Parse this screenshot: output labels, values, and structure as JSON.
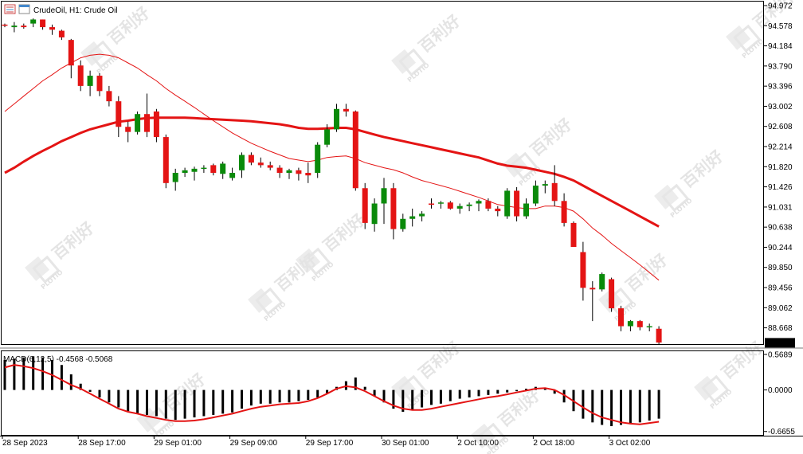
{
  "window": {
    "title": "CrudeOil, H1:  Crude Oil",
    "icon": "chart-window-icon"
  },
  "watermark": {
    "brand_cn": "百利好",
    "brand_en": "PLOTIO"
  },
  "colors": {
    "bull": "#0a8a0a",
    "bear": "#e41414",
    "ma_fast": "#e41414",
    "ma_slow": "#e41414",
    "macd_hist": "#000000",
    "macd_signal": "#e41414",
    "price_tag_bg": "#000000",
    "price_tag_fg": "#ffffff"
  },
  "price_axis": {
    "labels": [
      "94.972",
      "94.578",
      "94.184",
      "93.790",
      "93.396",
      "93.002",
      "92.608",
      "92.214",
      "91.820",
      "91.426",
      "91.031",
      "90.638",
      "90.244",
      "89.850",
      "89.456",
      "89.062",
      "88.668"
    ],
    "current_price": "88.375",
    "range": [
      88.35,
      95.05
    ]
  },
  "time_axis": {
    "labels": [
      "28 Sep 2023",
      "28 Sep 17:00",
      "29 Sep 01:00",
      "29 Sep 09:00",
      "29 Sep 17:00",
      "30 Sep 01:00",
      "2 Oct 10:00",
      "2 Oct 18:00",
      "3 Oct 02:00"
    ],
    "label_bars": [
      0,
      8,
      16,
      24,
      32,
      40,
      48,
      56,
      64
    ]
  },
  "macd_panel": {
    "label": "MACD(6,12,5) -0.4568 -0.5068",
    "axis_labels": [
      "0.5689",
      "0.0000",
      "-0.6655"
    ],
    "range": [
      -0.72,
      0.62
    ]
  },
  "chart_data": {
    "type": "candlestick",
    "ohlc": [
      [
        94.6,
        94.62,
        94.55,
        94.58
      ],
      [
        94.55,
        94.65,
        94.45,
        94.58
      ],
      [
        94.58,
        94.62,
        94.52,
        94.55
      ],
      [
        94.62,
        94.72,
        94.55,
        94.7
      ],
      [
        94.7,
        94.7,
        94.5,
        94.55
      ],
      [
        94.55,
        94.6,
        94.4,
        94.5
      ],
      [
        94.48,
        94.5,
        94.3,
        94.35
      ],
      [
        94.3,
        94.32,
        93.55,
        93.8
      ],
      [
        93.8,
        93.9,
        93.3,
        93.4
      ],
      [
        93.4,
        93.7,
        93.2,
        93.6
      ],
      [
        93.6,
        93.65,
        93.2,
        93.3
      ],
      [
        93.3,
        93.4,
        93.0,
        93.1
      ],
      [
        93.1,
        93.2,
        92.4,
        92.6
      ],
      [
        92.6,
        92.7,
        92.3,
        92.5
      ],
      [
        92.5,
        92.9,
        92.45,
        92.85
      ],
      [
        92.85,
        93.25,
        92.4,
        92.5
      ],
      [
        92.9,
        92.95,
        92.3,
        92.4
      ],
      [
        92.4,
        92.45,
        91.4,
        91.5
      ],
      [
        91.52,
        91.78,
        91.35,
        91.7
      ],
      [
        91.7,
        91.8,
        91.62,
        91.75
      ],
      [
        91.72,
        91.82,
        91.55,
        91.78
      ],
      [
        91.78,
        91.85,
        91.7,
        91.8
      ],
      [
        91.85,
        91.88,
        91.65,
        91.7
      ],
      [
        91.68,
        91.92,
        91.58,
        91.88
      ],
      [
        91.6,
        91.8,
        91.55,
        91.7
      ],
      [
        91.75,
        92.1,
        91.6,
        92.05
      ],
      [
        92.05,
        92.1,
        91.85,
        91.9
      ],
      [
        91.9,
        92.0,
        91.8,
        91.85
      ],
      [
        91.85,
        91.92,
        91.75,
        91.8
      ],
      [
        91.8,
        91.85,
        91.6,
        91.7
      ],
      [
        91.7,
        91.78,
        91.58,
        91.75
      ],
      [
        91.75,
        91.8,
        91.55,
        91.68
      ],
      [
        91.7,
        91.9,
        91.5,
        91.65
      ],
      [
        91.7,
        92.3,
        91.6,
        92.25
      ],
      [
        92.25,
        92.65,
        92.2,
        92.55
      ],
      [
        92.55,
        93.05,
        92.5,
        92.95
      ],
      [
        92.95,
        93.05,
        92.8,
        92.9
      ],
      [
        92.9,
        92.92,
        91.35,
        91.4
      ],
      [
        91.4,
        91.5,
        90.6,
        90.72
      ],
      [
        90.7,
        91.2,
        90.55,
        91.1
      ],
      [
        91.1,
        91.6,
        90.7,
        91.4
      ],
      [
        91.4,
        91.5,
        90.4,
        90.6
      ],
      [
        90.6,
        90.9,
        90.55,
        90.8
      ],
      [
        90.8,
        91.0,
        90.65,
        90.85
      ],
      [
        90.85,
        90.95,
        90.75,
        90.9
      ],
      [
        91.1,
        91.2,
        91.0,
        91.08
      ],
      [
        91.1,
        91.15,
        91.0,
        91.12
      ],
      [
        91.12,
        91.15,
        90.98,
        91.0
      ],
      [
        91.0,
        91.1,
        90.9,
        91.05
      ],
      [
        91.05,
        91.12,
        90.95,
        91.08
      ],
      [
        91.1,
        91.18,
        90.95,
        91.15
      ],
      [
        91.15,
        91.2,
        90.95,
        91.0
      ],
      [
        91.0,
        91.05,
        90.85,
        90.95
      ],
      [
        90.85,
        91.4,
        90.8,
        91.35
      ],
      [
        91.35,
        91.42,
        90.75,
        90.85
      ],
      [
        90.85,
        91.2,
        90.8,
        91.1
      ],
      [
        91.1,
        91.55,
        91.05,
        91.45
      ],
      [
        91.45,
        91.55,
        91.3,
        91.48
      ],
      [
        91.5,
        91.85,
        91.05,
        91.15
      ],
      [
        91.15,
        91.3,
        90.65,
        90.72
      ],
      [
        90.72,
        90.75,
        90.25,
        90.25
      ],
      [
        90.15,
        90.35,
        89.2,
        89.45
      ],
      [
        89.45,
        89.58,
        88.8,
        89.42
      ],
      [
        89.42,
        89.75,
        89.38,
        89.72
      ],
      [
        89.62,
        89.65,
        88.98,
        89.05
      ],
      [
        89.05,
        89.1,
        88.6,
        88.7
      ],
      [
        88.7,
        88.82,
        88.6,
        88.8
      ],
      [
        88.8,
        88.82,
        88.62,
        88.68
      ],
      [
        88.68,
        88.75,
        88.6,
        88.7
      ],
      [
        88.65,
        88.7,
        88.35,
        88.38
      ]
    ],
    "ma_fast": [
      92.9,
      93.05,
      93.2,
      93.35,
      93.5,
      93.62,
      93.75,
      93.85,
      93.95,
      94.0,
      94.02,
      94.0,
      93.95,
      93.85,
      93.75,
      93.62,
      93.5,
      93.35,
      93.22,
      93.1,
      92.98,
      92.85,
      92.72,
      92.6,
      92.48,
      92.38,
      92.28,
      92.2,
      92.12,
      92.05,
      91.98,
      91.95,
      91.92,
      91.95,
      92.0,
      92.02,
      92.03,
      91.98,
      91.9,
      91.85,
      91.8,
      91.76,
      91.7,
      91.62,
      91.55,
      91.5,
      91.45,
      91.4,
      91.34,
      91.28,
      91.22,
      91.15,
      91.08,
      91.05,
      91.02,
      91.0,
      91.0,
      91.05,
      91.05,
      91.02,
      90.95,
      90.8,
      90.62,
      90.48,
      90.32,
      90.18,
      90.04,
      89.9,
      89.75,
      89.6
    ],
    "ma_slow": [
      91.7,
      91.8,
      91.92,
      92.03,
      92.13,
      92.22,
      92.32,
      92.4,
      92.48,
      92.55,
      92.6,
      92.65,
      92.7,
      92.72,
      92.75,
      92.77,
      92.78,
      92.78,
      92.78,
      92.78,
      92.77,
      92.76,
      92.75,
      92.74,
      92.73,
      92.72,
      92.71,
      92.69,
      92.67,
      92.65,
      92.62,
      92.58,
      92.56,
      92.56,
      92.57,
      92.58,
      92.58,
      92.55,
      92.5,
      92.45,
      92.4,
      92.36,
      92.32,
      92.28,
      92.24,
      92.2,
      92.16,
      92.12,
      92.08,
      92.04,
      92.0,
      91.94,
      91.88,
      91.84,
      91.82,
      91.8,
      91.76,
      91.72,
      91.68,
      91.62,
      91.55,
      91.45,
      91.35,
      91.25,
      91.15,
      91.05,
      90.95,
      90.85,
      90.75,
      90.65
    ],
    "macd_hist": [
      0.48,
      0.5,
      0.52,
      0.54,
      0.52,
      0.48,
      0.4,
      0.25,
      0.1,
      -0.03,
      -0.12,
      -0.2,
      -0.28,
      -0.34,
      -0.38,
      -0.4,
      -0.42,
      -0.46,
      -0.48,
      -0.46,
      -0.44,
      -0.42,
      -0.4,
      -0.38,
      -0.36,
      -0.3,
      -0.25,
      -0.22,
      -0.22,
      -0.2,
      -0.2,
      -0.18,
      -0.16,
      -0.12,
      -0.05,
      0.05,
      0.14,
      0.2,
      0.05,
      -0.1,
      -0.2,
      -0.3,
      -0.35,
      -0.32,
      -0.28,
      -0.24,
      -0.22,
      -0.18,
      -0.14,
      -0.12,
      -0.1,
      -0.08,
      -0.06,
      -0.04,
      -0.02,
      0.02,
      0.05,
      0.02,
      -0.06,
      -0.2,
      -0.34,
      -0.46,
      -0.52,
      -0.56,
      -0.58,
      -0.56,
      -0.54,
      -0.52,
      -0.49,
      -0.46
    ],
    "macd_signal": [
      0.36,
      0.4,
      0.38,
      0.35,
      0.3,
      0.24,
      0.16,
      0.08,
      0.02,
      -0.06,
      -0.14,
      -0.22,
      -0.3,
      -0.35,
      -0.38,
      -0.42,
      -0.45,
      -0.48,
      -0.5,
      -0.5,
      -0.49,
      -0.47,
      -0.44,
      -0.41,
      -0.38,
      -0.34,
      -0.3,
      -0.27,
      -0.25,
      -0.23,
      -0.22,
      -0.21,
      -0.18,
      -0.13,
      -0.06,
      0.02,
      0.06,
      0.04,
      -0.02,
      -0.1,
      -0.18,
      -0.25,
      -0.3,
      -0.32,
      -0.32,
      -0.3,
      -0.27,
      -0.24,
      -0.21,
      -0.18,
      -0.15,
      -0.12,
      -0.1,
      -0.07,
      -0.04,
      -0.01,
      0.02,
      0.03,
      0.0,
      -0.08,
      -0.18,
      -0.28,
      -0.37,
      -0.44,
      -0.48,
      -0.52,
      -0.54,
      -0.55,
      -0.53,
      -0.51
    ]
  }
}
